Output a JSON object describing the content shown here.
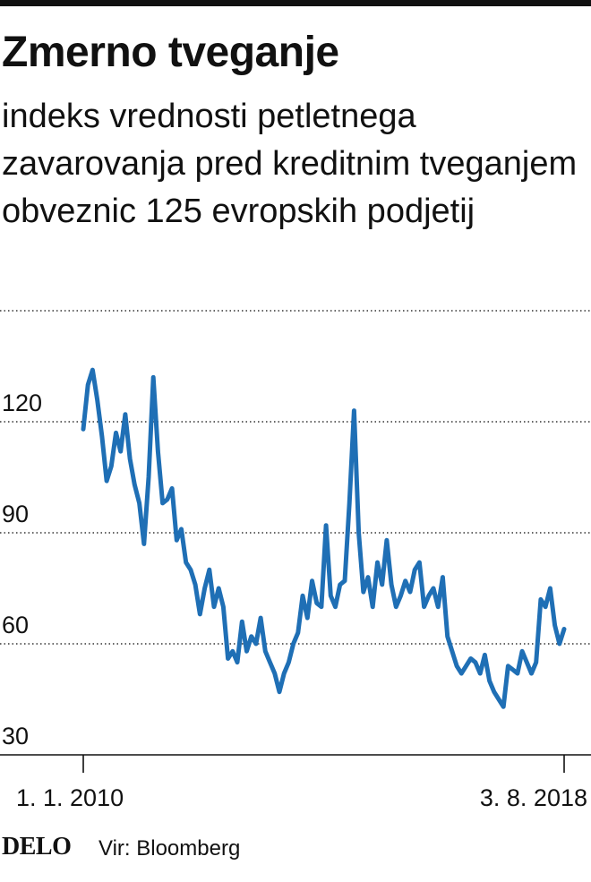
{
  "chart_data": {
    "type": "line",
    "title": "Zmerno tveganje",
    "subtitle": "indeks vrednosti petletnega zavarovanja pred kreditnim tveganjem obveznic 125 evropskih podjetij",
    "xlabel": "",
    "ylabel": "",
    "ylim": [
      30,
      150
    ],
    "yticks": [
      "30",
      "60",
      "90",
      "120"
    ],
    "x_tick_labels": [
      "1. 1. 2010",
      "3. 8. 2018"
    ],
    "grid": true,
    "legend": "none",
    "color": "#1f6fb5",
    "series": [
      {
        "x": [
          "2010-01",
          "2010-02",
          "2010-03",
          "2010-04",
          "2010-05",
          "2010-06",
          "2010-07",
          "2010-08",
          "2010-09",
          "2010-10",
          "2010-11",
          "2010-12",
          "2011-01",
          "2011-02",
          "2011-03",
          "2011-04",
          "2011-05",
          "2011-06",
          "2011-07",
          "2011-08",
          "2011-09",
          "2011-10",
          "2011-11",
          "2011-12",
          "2012-01",
          "2012-02",
          "2012-03",
          "2012-04",
          "2012-05",
          "2012-06",
          "2012-07",
          "2012-08",
          "2012-09",
          "2012-10",
          "2012-11",
          "2012-12",
          "2013-01",
          "2013-02",
          "2013-03",
          "2013-04",
          "2013-05",
          "2013-06",
          "2013-07",
          "2013-08",
          "2013-09",
          "2013-10",
          "2013-11",
          "2013-12",
          "2014-01",
          "2014-02",
          "2014-03",
          "2014-04",
          "2014-05",
          "2014-06",
          "2014-07",
          "2014-08",
          "2014-09",
          "2014-10",
          "2014-11",
          "2014-12",
          "2015-01",
          "2015-02",
          "2015-03",
          "2015-04",
          "2015-05",
          "2015-06",
          "2015-07",
          "2015-08",
          "2015-09",
          "2015-10",
          "2015-11",
          "2015-12",
          "2016-01",
          "2016-02",
          "2016-03",
          "2016-04",
          "2016-05",
          "2016-06",
          "2016-07",
          "2016-08",
          "2016-09",
          "2016-10",
          "2016-11",
          "2016-12",
          "2017-01",
          "2017-02",
          "2017-03",
          "2017-04",
          "2017-05",
          "2017-06",
          "2017-07",
          "2017-08",
          "2017-09",
          "2017-10",
          "2017-11",
          "2017-12",
          "2018-01",
          "2018-02",
          "2018-03",
          "2018-04",
          "2018-05",
          "2018-06",
          "2018-07",
          "2018-08"
        ],
        "values": [
          118,
          130,
          134,
          126,
          116,
          104,
          108,
          117,
          112,
          122,
          110,
          103,
          98,
          87,
          105,
          132,
          112,
          98,
          99,
          102,
          88,
          91,
          82,
          80,
          76,
          68,
          75,
          80,
          70,
          75,
          70,
          56,
          58,
          55,
          66,
          58,
          62,
          60,
          67,
          58,
          55,
          52,
          47,
          52,
          55,
          60,
          63,
          73,
          67,
          77,
          71,
          70,
          92,
          73,
          70,
          76,
          77,
          98,
          123,
          90,
          74,
          78,
          70,
          82,
          76,
          88,
          76,
          70,
          73,
          77,
          74,
          80,
          82,
          70,
          73,
          75,
          70,
          78,
          62,
          58,
          54,
          52,
          54,
          56,
          55,
          52,
          57,
          50,
          47,
          45,
          43,
          54,
          53,
          52,
          58,
          55,
          52,
          55,
          72,
          70,
          75,
          65,
          60,
          64
        ]
      }
    ]
  },
  "footer": {
    "logo": "DELO",
    "source": "Vir: Bloomberg"
  }
}
